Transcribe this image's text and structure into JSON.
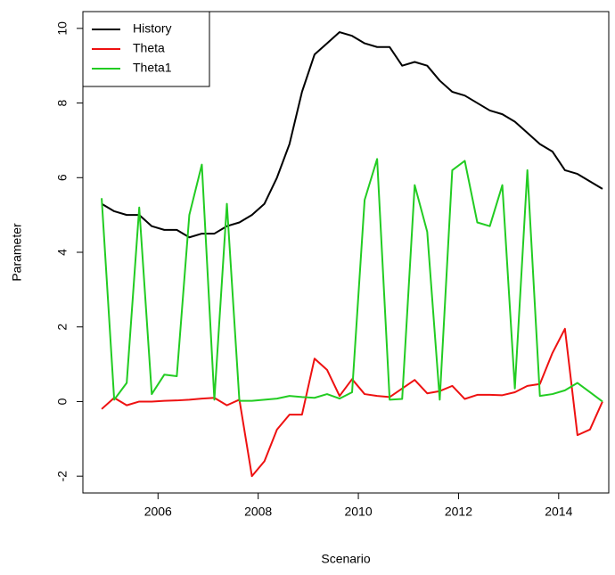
{
  "chart_data": {
    "type": "line",
    "x_label": "Scenario",
    "y_label": "Parameter",
    "x": [
      2004.875,
      2005.125,
      2005.375,
      2005.625,
      2005.875,
      2006.125,
      2006.375,
      2006.625,
      2006.875,
      2007.125,
      2007.375,
      2007.625,
      2007.875,
      2008.125,
      2008.375,
      2008.625,
      2008.875,
      2009.125,
      2009.375,
      2009.625,
      2009.875,
      2010.125,
      2010.375,
      2010.625,
      2010.875,
      2011.125,
      2011.375,
      2011.625,
      2011.875,
      2012.125,
      2012.375,
      2012.625,
      2012.875,
      2013.125,
      2013.375,
      2013.625,
      2013.875,
      2014.125,
      2014.375,
      2014.625,
      2014.875
    ],
    "series": [
      {
        "name": "History",
        "color": "#000000",
        "values": [
          5.3,
          5.1,
          5.0,
          5.0,
          4.7,
          4.6,
          4.6,
          4.4,
          4.5,
          4.5,
          4.7,
          4.8,
          5.0,
          5.3,
          6.0,
          6.9,
          8.3,
          9.3,
          9.6,
          9.9,
          9.8,
          9.6,
          9.5,
          9.5,
          9.0,
          9.1,
          9.0,
          8.6,
          8.3,
          8.2,
          8.0,
          7.8,
          7.7,
          7.5,
          7.2,
          6.9,
          6.7,
          6.2,
          6.1,
          5.9,
          5.7
        ]
      },
      {
        "name": "Theta",
        "color": "#ee1111",
        "values": [
          -0.2,
          0.1,
          -0.1,
          0,
          0,
          0.02,
          0.03,
          0.05,
          0.08,
          0.1,
          -0.1,
          0.05,
          -2.0,
          -1.6,
          -0.75,
          -0.35,
          -0.35,
          1.15,
          0.85,
          0.15,
          0.6,
          0.2,
          0.15,
          0.12,
          0.35,
          0.58,
          0.22,
          0.28,
          0.42,
          0.07,
          0.18,
          0.18,
          0.17,
          0.25,
          0.42,
          0.47,
          1.3,
          1.95,
          -0.9,
          -0.75,
          0
        ]
      },
      {
        "name": "Theta1",
        "color": "#22cc22",
        "values": [
          5.45,
          0.05,
          0.5,
          5.2,
          0.2,
          0.72,
          0.68,
          5.0,
          6.35,
          0.05,
          5.3,
          0.02,
          0.02,
          0.05,
          0.08,
          0.15,
          0.12,
          0.1,
          0.2,
          0.08,
          0.25,
          5.4,
          6.5,
          0.05,
          0.07,
          5.8,
          4.55,
          0.05,
          6.2,
          6.45,
          4.8,
          4.7,
          5.8,
          0.35,
          6.2,
          0.15,
          0.2,
          0.3,
          0.5,
          0.25,
          0.0
        ]
      }
    ],
    "xlim": [
      2004.5,
      2015.0
    ],
    "ylim": [
      -2.45,
      10.45
    ],
    "xticks": [
      2006,
      2008,
      2010,
      2012,
      2014
    ],
    "yticks": [
      -2,
      0,
      2,
      4,
      6,
      8,
      10
    ],
    "legend": "top-left",
    "grid": false
  }
}
